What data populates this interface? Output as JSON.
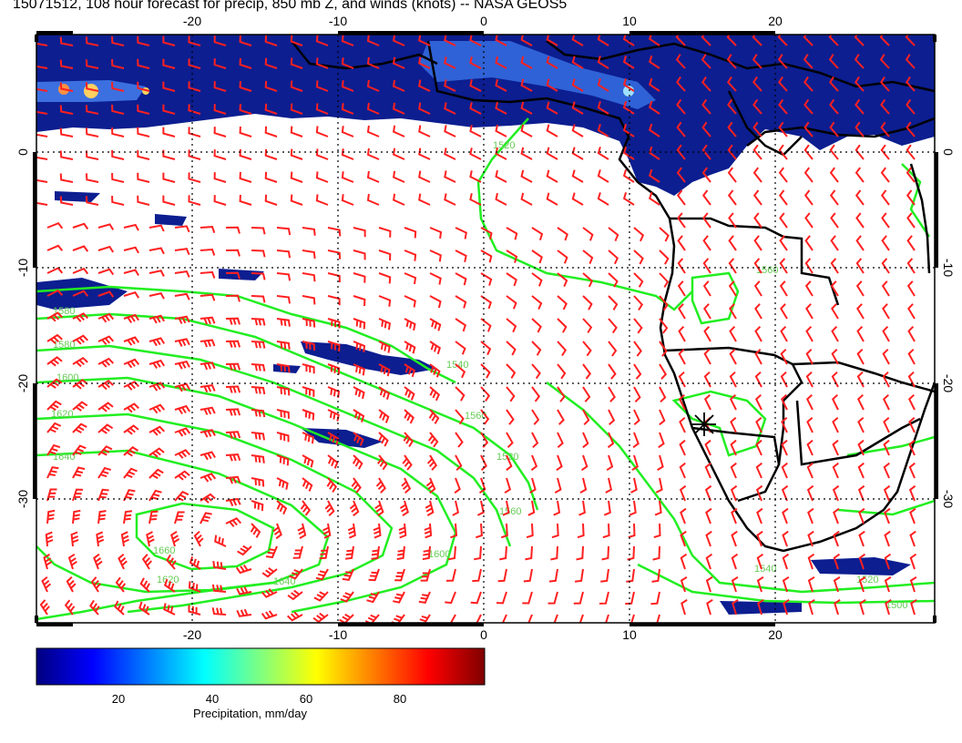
{
  "title": "15071512, 108 hour forecast for precip, 850 mb Z, and winds (knots) -- NASA GEOS5",
  "map": {
    "lon_labels": [
      "-20",
      "-10",
      "0",
      "10",
      "20"
    ],
    "lat_labels": [
      "0",
      "-10",
      "-20",
      "-30"
    ],
    "contour_labels": [
      "1520",
      "1520",
      "1540",
      "1540",
      "1560",
      "1560",
      "1580",
      "1580",
      "1600",
      "1600",
      "1620",
      "1620",
      "1640",
      "1640",
      "1660",
      "1500",
      "1520",
      "1560"
    ],
    "colors": {
      "precip_dark": "#0a1a8a",
      "precip_mid": "#2f5fd0",
      "precip_light": "#7fb0ff",
      "contour": "#22ee22",
      "contour_label": "#66cc55",
      "wind_barb": "#ff2020",
      "coastline": "#000000",
      "grid": "#000000"
    },
    "marker": "star"
  },
  "colorbar": {
    "ticks": [
      "20",
      "40",
      "60",
      "80"
    ],
    "label": "Precipitation, mm/day",
    "colors": [
      "#00007f",
      "#0000ff",
      "#007fff",
      "#00ffff",
      "#7fff7f",
      "#ffff00",
      "#ff7f00",
      "#ff0000",
      "#7f0000"
    ]
  }
}
